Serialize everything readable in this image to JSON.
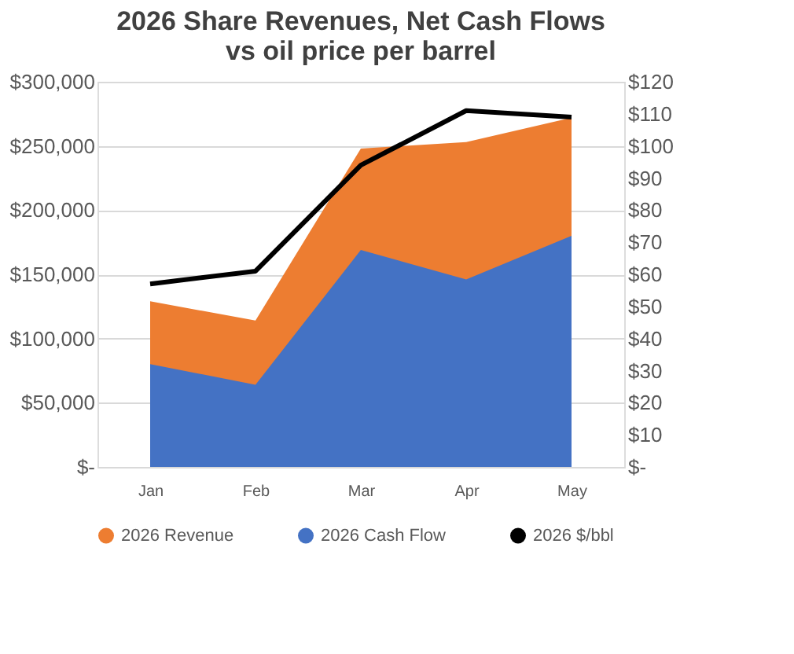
{
  "chart_data": {
    "type": "area",
    "title": "2026 Share Revenues, Net Cash Flows\nvs oil price per barrel",
    "categories": [
      "Jan",
      "Feb",
      "Mar",
      "Apr",
      "May"
    ],
    "series": [
      {
        "name": "2026 Revenue",
        "color": "#ed7d31",
        "values": [
          129000,
          114000,
          248000,
          253000,
          272000
        ]
      },
      {
        "name": "2026 Cash Flow",
        "color": "#4472c4",
        "values": [
          80000,
          64000,
          169000,
          146000,
          180000
        ]
      },
      {
        "name": "2026 $/bbl",
        "color": "#000000",
        "type": "line",
        "axis": "y2",
        "values": [
          57,
          61,
          94,
          111,
          109
        ]
      }
    ],
    "ylim": [
      0,
      300000
    ],
    "yticks": [
      {
        "value": 0,
        "label": "$-"
      },
      {
        "value": 50000,
        "label": "$50,000"
      },
      {
        "value": 100000,
        "label": "$100,000"
      },
      {
        "value": 150000,
        "label": "$150,000"
      },
      {
        "value": 200000,
        "label": "$200,000"
      },
      {
        "value": 250000,
        "label": "$250,000"
      },
      {
        "value": 300000,
        "label": "$300,000"
      }
    ],
    "y2lim": [
      0,
      120
    ],
    "y2ticks": [
      {
        "value": 0,
        "label": "$-"
      },
      {
        "value": 10,
        "label": "$10"
      },
      {
        "value": 20,
        "label": "$20"
      },
      {
        "value": 30,
        "label": "$30"
      },
      {
        "value": 40,
        "label": "$40"
      },
      {
        "value": 50,
        "label": "$50"
      },
      {
        "value": 60,
        "label": "$60"
      },
      {
        "value": 70,
        "label": "$70"
      },
      {
        "value": 80,
        "label": "$80"
      },
      {
        "value": 90,
        "label": "$90"
      },
      {
        "value": 100,
        "label": "$100"
      },
      {
        "value": 110,
        "label": "$110"
      },
      {
        "value": 120,
        "label": "$120"
      }
    ],
    "grid": "y",
    "legend": "bottom"
  }
}
